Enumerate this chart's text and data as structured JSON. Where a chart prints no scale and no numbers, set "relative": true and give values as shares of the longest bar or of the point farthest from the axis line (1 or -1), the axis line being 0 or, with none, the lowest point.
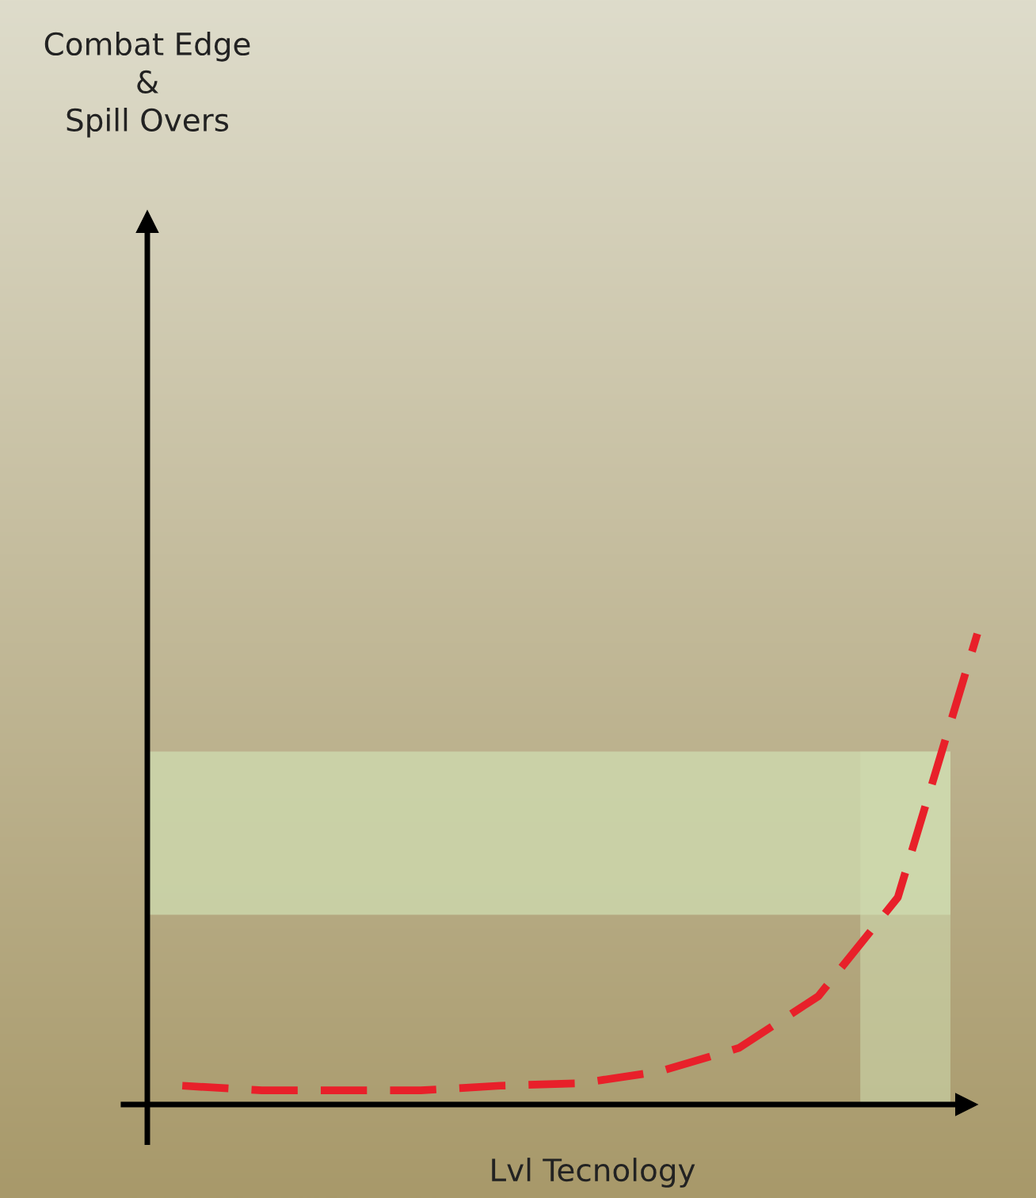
{
  "chart_data": {
    "type": "line",
    "relative": true,
    "xlabel": "Lvl Tecnology",
    "annotations": [
      "Combat Edge\n&\nSpill Overs"
    ],
    "categories": [
      null,
      null,
      null,
      null,
      null,
      null,
      null,
      null,
      null,
      null,
      null
    ],
    "series": [
      {
        "color": "#e8202a",
        "values": [
          0.04,
          0.03,
          0.03,
          0.03,
          0.04,
          0.045,
          0.07,
          0.12,
          0.23,
          0.44,
          1.0
        ]
      }
    ],
    "line_style": "dashed",
    "marker": "none"
  }
}
